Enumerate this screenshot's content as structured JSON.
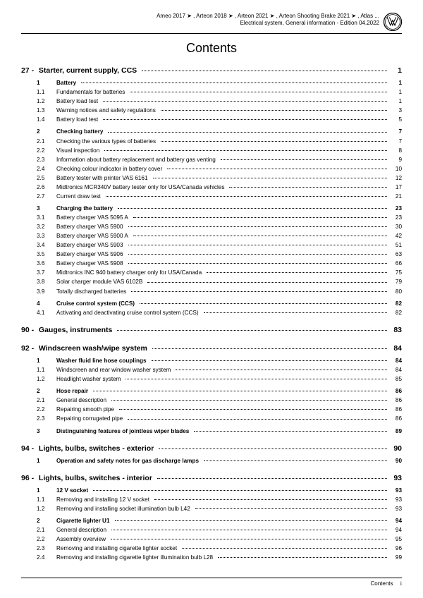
{
  "header": {
    "line1": "Ameo 2017 ➤ , Arteon 2018 ➤ , Arteon 2021 ➤ , Arteon Shooting Brake 2021 ➤ , Atlas ...",
    "line2": "Electrical system, General information - Edition 04.2022"
  },
  "title": "Contents",
  "footer": {
    "label": "Contents",
    "page": "i"
  },
  "sections": [
    {
      "num": "27",
      "title": "Starter, current supply, CCS",
      "page": "1",
      "items": [
        {
          "n": "1",
          "t": "Battery",
          "p": "1",
          "bold": true
        },
        {
          "n": "1.1",
          "t": "Fundamentals for batteries",
          "p": "1"
        },
        {
          "n": "1.2",
          "t": "Battery load test",
          "p": "1"
        },
        {
          "n": "1.3",
          "t": "Warning notices and safety regulations",
          "p": "3"
        },
        {
          "n": "1.4",
          "t": "Battery load test",
          "p": "5"
        },
        {
          "n": "2",
          "t": "Checking battery",
          "p": "7",
          "bold": true,
          "gap": true
        },
        {
          "n": "2.1",
          "t": "Checking the various types of batteries",
          "p": "7"
        },
        {
          "n": "2.2",
          "t": "Visual inspection",
          "p": "8"
        },
        {
          "n": "2.3",
          "t": "Information about battery replacement and battery gas venting",
          "p": "9"
        },
        {
          "n": "2.4",
          "t": "Checking colour indicator in battery cover",
          "p": "10"
        },
        {
          "n": "2.5",
          "t": "Battery tester with printer VAS 6161",
          "p": "12"
        },
        {
          "n": "2.6",
          "t": "Midtronics MCR340V battery tester only for USA/Canada vehicles",
          "p": "17"
        },
        {
          "n": "2.7",
          "t": "Current draw test",
          "p": "21"
        },
        {
          "n": "3",
          "t": "Charging the battery",
          "p": "23",
          "bold": true,
          "gap": true
        },
        {
          "n": "3.1",
          "t": "Battery charger VAS 5095 A",
          "p": "23"
        },
        {
          "n": "3.2",
          "t": "Battery charger VAS 5900",
          "p": "30"
        },
        {
          "n": "3.3",
          "t": "Battery charger VAS 5900 A",
          "p": "42"
        },
        {
          "n": "3.4",
          "t": "Battery charger VAS 5903",
          "p": "51"
        },
        {
          "n": "3.5",
          "t": "Battery charger VAS 5906",
          "p": "63"
        },
        {
          "n": "3.6",
          "t": "Battery charger VAS 5908",
          "p": "66"
        },
        {
          "n": "3.7",
          "t": "Midtronics INC 940 battery charger only for USA/Canada",
          "p": "75"
        },
        {
          "n": "3.8",
          "t": "Solar charger module VAS 6102B",
          "p": "79"
        },
        {
          "n": "3.9",
          "t": "Totally discharged batteries",
          "p": "80"
        },
        {
          "n": "4",
          "t": "Cruise control system (CCS)",
          "p": "82",
          "bold": true,
          "gap": true
        },
        {
          "n": "4.1",
          "t": "Activating and deactivating cruise control system (CCS)",
          "p": "82"
        }
      ]
    },
    {
      "num": "90",
      "title": "Gauges, instruments",
      "page": "83",
      "items": []
    },
    {
      "num": "92",
      "title": "Windscreen wash/wipe system",
      "page": "84",
      "items": [
        {
          "n": "1",
          "t": "Washer fluid line hose couplings",
          "p": "84",
          "bold": true
        },
        {
          "n": "1.1",
          "t": "Windscreen and rear window washer system",
          "p": "84"
        },
        {
          "n": "1.2",
          "t": "Headlight washer system",
          "p": "85"
        },
        {
          "n": "2",
          "t": "Hose repair",
          "p": "86",
          "bold": true,
          "gap": true
        },
        {
          "n": "2.1",
          "t": "General description",
          "p": "86"
        },
        {
          "n": "2.2",
          "t": "Repairing smooth pipe",
          "p": "86"
        },
        {
          "n": "2.3",
          "t": "Repairing corrugated pipe",
          "p": "86"
        },
        {
          "n": "3",
          "t": "Distinguishing features of jointless wiper blades",
          "p": "89",
          "bold": true,
          "gap": true
        }
      ]
    },
    {
      "num": "94",
      "title": "Lights, bulbs, switches - exterior",
      "page": "90",
      "items": [
        {
          "n": "1",
          "t": "Operation and safety notes for gas discharge lamps",
          "p": "90",
          "bold": true
        }
      ]
    },
    {
      "num": "96",
      "title": "Lights, bulbs, switches - interior",
      "page": "93",
      "items": [
        {
          "n": "1",
          "t": "12 V socket",
          "p": "93",
          "bold": true
        },
        {
          "n": "1.1",
          "t": "Removing and installing 12 V socket",
          "p": "93"
        },
        {
          "n": "1.2",
          "t": "Removing and installing socket illumination bulb L42",
          "p": "93"
        },
        {
          "n": "2",
          "t": "Cigarette lighter U1",
          "p": "94",
          "bold": true,
          "gap": true
        },
        {
          "n": "2.1",
          "t": "General description",
          "p": "94"
        },
        {
          "n": "2.2",
          "t": "Assembly overview",
          "p": "95"
        },
        {
          "n": "2.3",
          "t": "Removing and installing cigarette lighter socket",
          "p": "96"
        },
        {
          "n": "2.4",
          "t": "Removing and installing cigarette lighter illumination bulb L28",
          "p": "99"
        }
      ]
    }
  ]
}
